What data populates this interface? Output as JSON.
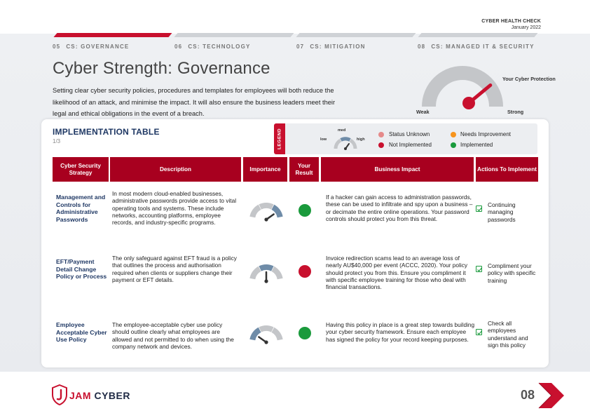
{
  "document": {
    "header_title": "CYBER HEALTH CHECK",
    "header_date": "January 2022",
    "page_number": "08"
  },
  "nav": {
    "sections": [
      {
        "num": "05",
        "label": "CS: GOVERNANCE",
        "active": true
      },
      {
        "num": "06",
        "label": "CS: TECHNOLOGY",
        "active": false
      },
      {
        "num": "07",
        "label": "CS: MITIGATION",
        "active": false
      },
      {
        "num": "08",
        "label": "CS: MANAGED IT & SECURITY",
        "active": false
      }
    ]
  },
  "main": {
    "title": "Cyber Strength: Governance",
    "intro": "Setting clear cyber security policies, procedures and templates for employees will both reduce the likelihood of an attack, and minimise the impact. It will also ensure the business leaders meet their legal and ethical obligations in the event of a breach."
  },
  "protection_gauge": {
    "title": "Your Cyber Protection",
    "low_label": "Weak",
    "high_label": "Strong",
    "level": 0.78
  },
  "implementation": {
    "title": "IMPLEMENTATION TABLE",
    "page": "1/3"
  },
  "legend": {
    "tab_label": "LEGEND",
    "gauge_low": "low",
    "gauge_med": "med",
    "gauge_high": "high",
    "items": [
      {
        "label": "Status Unknown",
        "color": "#e58a8a"
      },
      {
        "label": "Needs Improvement",
        "color": "#f7941d"
      },
      {
        "label": "Not Implemented",
        "color": "#c8102e"
      },
      {
        "label": "Implemented",
        "color": "#1a9a3c"
      }
    ]
  },
  "table": {
    "headers": {
      "strategy": "Cyber Security Strategy",
      "description": "Description",
      "importance": "Importance",
      "result": "Your Result",
      "impact": "Business Impact",
      "actions": "Actions To Implement"
    },
    "rows": [
      {
        "strategy": "Management and Controls for Administrative Passwords",
        "description": "In most modern cloud-enabled businesses, administrative passwords provide access to vital operating tools and systems. These include networks, accounting platforms, employee records, and industry-specific programs.",
        "importance": "high",
        "result_color": "#1a9a3c",
        "impact": "If a hacker can gain access to administration passwords, these can be used to infiltrate and spy upon a business – or decimate the entire online operations. Your password controls should protect you from this threat.",
        "action": "Continuing managing passwords"
      },
      {
        "strategy": "EFT/Payment Detail Change Policy or Process",
        "description": "The only safeguard against EFT fraud is a policy that outlines the process and authorisation required when clients or suppliers change their payment or EFT details.",
        "importance": "med",
        "result_color": "#c8102e",
        "impact": "Invoice redirection scams lead to an average loss of nearly AU$40,000 per event (ACCC, 2020). Your policy should protect you from this. Ensure you compliment it with specific employee training for those who deal with financial transactions.",
        "action": "Compliment your policy with specific training"
      },
      {
        "strategy": "Employee Acceptable Cyber Use Policy",
        "description": "The employee-acceptable cyber use policy should outline clearly what employees are allowed and not permitted to do when using the company network and devices.",
        "importance": "low",
        "result_color": "#1a9a3c",
        "impact": "Having this policy in place is a great step towards building your cyber security framework. Ensure each employee has signed the policy for your record keeping purposes.",
        "action": "Check all employees understand and sign this policy"
      }
    ]
  },
  "footer": {
    "logo_jam": "JAM",
    "logo_cyber": "CYBER"
  },
  "colors": {
    "brand_red": "#c8102e",
    "header_red": "#a8001f",
    "navy": "#1f3864",
    "gauge_grey": "#c4c6c9",
    "gauge_blue": "#6f8ca8"
  }
}
